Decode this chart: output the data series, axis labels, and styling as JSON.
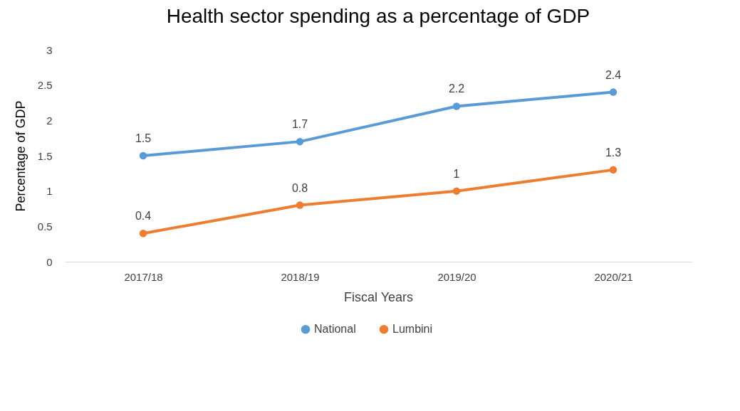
{
  "chart_data": {
    "type": "line",
    "title": "Health sector spending as a percentage of GDP",
    "xlabel": "Fiscal Years",
    "ylabel": "Percentage of GDP",
    "categories": [
      "2017/18",
      "2018/19",
      "2019/20",
      "2020/21"
    ],
    "series": [
      {
        "name": "National",
        "color": "#5b9bd5",
        "values": [
          1.5,
          1.7,
          2.2,
          2.4
        ]
      },
      {
        "name": "Lumbini",
        "color": "#ed7d31",
        "values": [
          0.4,
          0.8,
          1,
          1.3
        ]
      }
    ],
    "ylim": [
      0,
      3
    ],
    "yticks": [
      0,
      0.5,
      1,
      1.5,
      2,
      2.5,
      3
    ],
    "marker": "circle",
    "data_labels": true,
    "legend": "bottom"
  }
}
